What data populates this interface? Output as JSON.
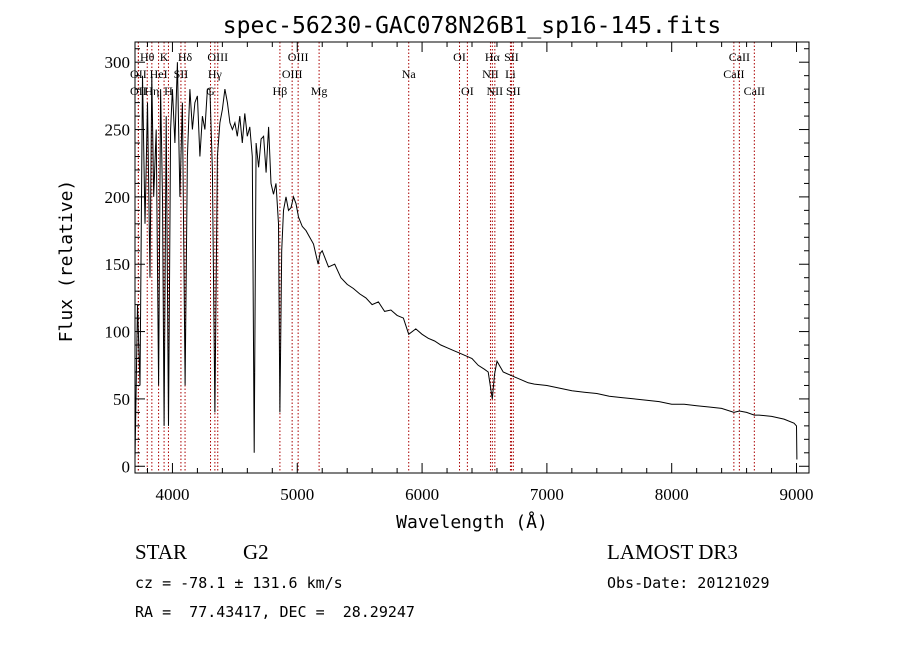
{
  "chart_data": {
    "type": "line",
    "title": "spec-56230-GAC078N26B1_sp16-145.fits",
    "xlabel": "Wavelength (Å)",
    "ylabel": "Flux (relative)",
    "xlim": [
      3700,
      9100
    ],
    "ylim": [
      -5,
      315
    ],
    "xticks": [
      4000,
      5000,
      6000,
      7000,
      8000,
      9000
    ],
    "yticks": [
      0,
      50,
      100,
      150,
      200,
      250,
      300
    ],
    "grid": false,
    "line_color": "#000000",
    "marker_color": "#aa0000",
    "spectrum": {
      "wavelength": [
        3700,
        3720,
        3740,
        3760,
        3780,
        3800,
        3820,
        3835,
        3850,
        3870,
        3889,
        3905,
        3920,
        3933,
        3950,
        3968,
        3985,
        4000,
        4020,
        4040,
        4060,
        4080,
        4101,
        4120,
        4140,
        4160,
        4180,
        4200,
        4220,
        4240,
        4260,
        4280,
        4300,
        4320,
        4340,
        4360,
        4380,
        4400,
        4420,
        4440,
        4460,
        4480,
        4500,
        4520,
        4540,
        4560,
        4580,
        4600,
        4620,
        4640,
        4655,
        4670,
        4690,
        4710,
        4730,
        4750,
        4770,
        4790,
        4810,
        4830,
        4850,
        4861,
        4875,
        4890,
        4910,
        4930,
        4950,
        4970,
        4990,
        5010,
        5040,
        5070,
        5100,
        5130,
        5167,
        5183,
        5200,
        5250,
        5300,
        5350,
        5400,
        5450,
        5500,
        5550,
        5600,
        5650,
        5700,
        5750,
        5800,
        5850,
        5893,
        5950,
        6000,
        6050,
        6100,
        6150,
        6200,
        6250,
        6300,
        6350,
        6400,
        6450,
        6500,
        6530,
        6563,
        6580,
        6600,
        6650,
        6700,
        6750,
        6800,
        6850,
        6900,
        7000,
        7100,
        7200,
        7300,
        7400,
        7500,
        7600,
        7700,
        7800,
        7900,
        8000,
        8100,
        8200,
        8300,
        8400,
        8498,
        8542,
        8600,
        8662,
        8700,
        8800,
        8900,
        8980,
        9000,
        9003
      ],
      "flux": [
        5,
        120,
        60,
        290,
        180,
        270,
        140,
        290,
        200,
        250,
        60,
        280,
        200,
        30,
        260,
        30,
        250,
        280,
        240,
        300,
        200,
        270,
        60,
        230,
        280,
        250,
        270,
        275,
        230,
        260,
        250,
        280,
        280,
        220,
        40,
        230,
        255,
        265,
        280,
        270,
        255,
        250,
        255,
        245,
        260,
        240,
        262,
        245,
        252,
        230,
        10,
        240,
        222,
        243,
        245,
        218,
        252,
        210,
        202,
        210,
        180,
        40,
        160,
        190,
        200,
        190,
        192,
        200,
        195,
        185,
        178,
        175,
        170,
        165,
        150,
        158,
        160,
        148,
        150,
        140,
        135,
        132,
        128,
        125,
        120,
        122,
        115,
        116,
        112,
        110,
        98,
        102,
        98,
        95,
        93,
        90,
        88,
        86,
        84,
        82,
        80,
        75,
        72,
        70,
        50,
        68,
        78,
        70,
        68,
        66,
        64,
        62,
        61,
        60,
        58,
        56,
        55,
        54,
        52,
        51,
        50,
        49,
        48,
        46,
        46,
        45,
        44,
        43,
        40,
        41,
        40,
        38,
        38,
        37,
        35,
        32,
        30,
        5
      ]
    },
    "line_markers": [
      {
        "name": "Hθ",
        "wavelength": 3798,
        "row": 0
      },
      {
        "name": "OII",
        "wavelength": 3727,
        "row": 1
      },
      {
        "name": "OII",
        "wavelength": 3727,
        "row": 2
      },
      {
        "name": "Hη",
        "wavelength": 3835,
        "row": 2
      },
      {
        "name": "HeI",
        "wavelength": 3889,
        "row": 1
      },
      {
        "name": "K",
        "wavelength": 3933,
        "row": 0
      },
      {
        "name": "H",
        "wavelength": 3968,
        "row": 2
      },
      {
        "name": "SII",
        "wavelength": 4068,
        "row": 1
      },
      {
        "name": "Hδ",
        "wavelength": 4101,
        "row": 0
      },
      {
        "name": "OIII",
        "wavelength": 4363,
        "row": 0
      },
      {
        "name": "Hγ",
        "wavelength": 4340,
        "row": 1
      },
      {
        "name": "G",
        "wavelength": 4305,
        "row": 2
      },
      {
        "name": "Hβ",
        "wavelength": 4861,
        "row": 2
      },
      {
        "name": "OIII",
        "wavelength": 5007,
        "row": 0
      },
      {
        "name": "OIII",
        "wavelength": 4959,
        "row": 1
      },
      {
        "name": "Mg",
        "wavelength": 5175,
        "row": 2
      },
      {
        "name": "Na",
        "wavelength": 5893,
        "row": 1
      },
      {
        "name": "OI",
        "wavelength": 6300,
        "row": 0
      },
      {
        "name": "OI",
        "wavelength": 6363,
        "row": 2
      },
      {
        "name": "Hα",
        "wavelength": 6563,
        "row": 0
      },
      {
        "name": "NII",
        "wavelength": 6548,
        "row": 1
      },
      {
        "name": "NII",
        "wavelength": 6583,
        "row": 2
      },
      {
        "name": "SII",
        "wavelength": 6716,
        "row": 0
      },
      {
        "name": "Li",
        "wavelength": 6708,
        "row": 1
      },
      {
        "name": "SII",
        "wavelength": 6731,
        "row": 2
      },
      {
        "name": "CaII",
        "wavelength": 8542,
        "row": 0
      },
      {
        "name": "CaII",
        "wavelength": 8498,
        "row": 1
      },
      {
        "name": "CaII",
        "wavelength": 8662,
        "row": 2
      }
    ]
  },
  "info": {
    "object_class": "STAR",
    "subclass": "G2",
    "survey": "LAMOST DR3",
    "redshift_line": "cz = -78.1 ± 131.6 km/s",
    "obs_date": "Obs-Date: 20121029",
    "coords": "RA =  77.43417, DEC =  28.29247"
  }
}
